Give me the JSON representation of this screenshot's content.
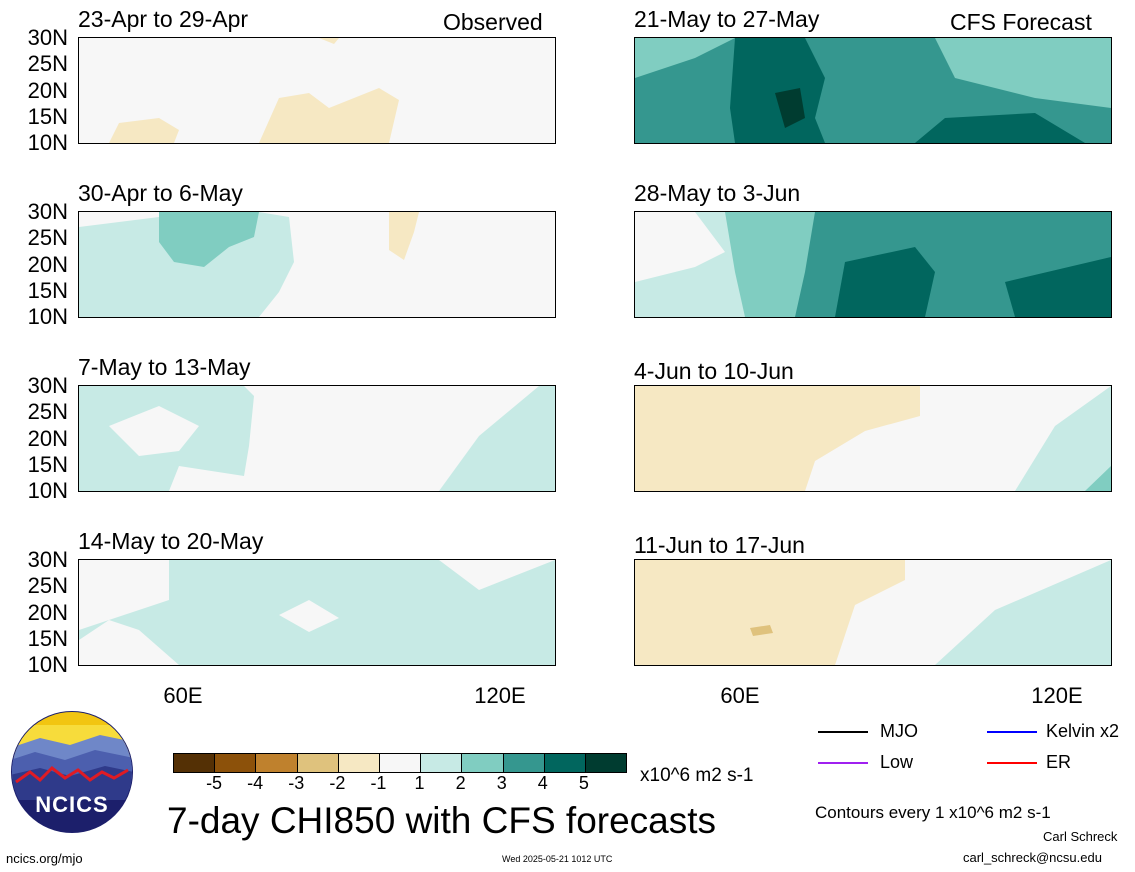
{
  "chart_data": {
    "type": "heatmap",
    "title": "7-day CHI850 with CFS forecasts",
    "units": "x10^6 m2 s-1",
    "contour_note": "Contours every 1 x10^6 m2 s-1",
    "lat_ticks": [
      "30N",
      "25N",
      "20N",
      "15N",
      "10N"
    ],
    "lon_ticks": [
      "60E",
      "120E"
    ],
    "colorbar": {
      "ticks": [
        "-5",
        "-4",
        "-3",
        "-2",
        "-1",
        "1",
        "2",
        "3",
        "4",
        "5"
      ],
      "colors": [
        "#543005",
        "#8c510a",
        "#bf812d",
        "#dfc27d",
        "#f6e8c3",
        "#f7f7f7",
        "#c7eae5",
        "#80cdc1",
        "#35978f",
        "#01665e",
        "#003c30"
      ]
    },
    "left_column_label": "Observed",
    "right_column_label": "CFS Forecast",
    "panels": [
      {
        "period": "23-Apr to 29-Apr",
        "source": "Observed",
        "dominant": "neutral / weak negative"
      },
      {
        "period": "30-Apr to 6-May",
        "source": "Observed",
        "dominant": "weak positive west"
      },
      {
        "period": "7-May to 13-May",
        "source": "Observed",
        "dominant": "neutral / weak positive"
      },
      {
        "period": "14-May to 20-May",
        "source": "Observed",
        "dominant": "weak positive"
      },
      {
        "period": "21-May to 27-May",
        "source": "CFS Forecast",
        "dominant": "strong positive"
      },
      {
        "period": "28-May to 3-Jun",
        "source": "CFS Forecast",
        "dominant": "strong positive east"
      },
      {
        "period": "4-Jun to 10-Jun",
        "source": "CFS Forecast",
        "dominant": "weak negative west"
      },
      {
        "period": "11-Jun to 17-Jun",
        "source": "CFS Forecast",
        "dominant": "weak negative west"
      }
    ]
  },
  "legend": [
    {
      "label": "MJO",
      "color": "#000000"
    },
    {
      "label": "Kelvin x2",
      "color": "#0000ff"
    },
    {
      "label": "Low",
      "color": "#a020f0"
    },
    {
      "label": "ER",
      "color": "#ff0000"
    }
  ],
  "logo_text": "NCICS",
  "footer": {
    "url": "ncics.org/mjo",
    "timestamp": "Wed 2025-05-21 1012 UTC",
    "author": "Carl Schreck",
    "email": "carl_schreck@ncsu.edu"
  }
}
